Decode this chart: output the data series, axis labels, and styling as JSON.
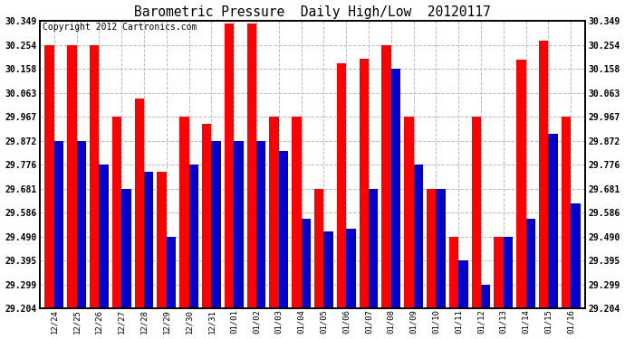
{
  "title": "Barometric Pressure  Daily High/Low  20120117",
  "copyright": "Copyright 2012 Cartronics.com",
  "categories": [
    "12/24",
    "12/25",
    "12/26",
    "12/27",
    "12/28",
    "12/29",
    "12/30",
    "12/31",
    "01/01",
    "01/02",
    "01/03",
    "01/04",
    "01/05",
    "01/06",
    "01/07",
    "01/08",
    "01/09",
    "01/10",
    "01/11",
    "01/12",
    "01/13",
    "01/14",
    "01/15",
    "01/16"
  ],
  "high_values": [
    30.254,
    30.254,
    30.254,
    29.967,
    30.04,
    29.75,
    29.967,
    29.94,
    30.34,
    30.34,
    29.967,
    29.967,
    29.681,
    30.181,
    30.2,
    30.254,
    29.967,
    29.681,
    29.49,
    29.967,
    29.49,
    30.195,
    30.27,
    29.967
  ],
  "low_values": [
    29.872,
    29.872,
    29.776,
    29.681,
    29.75,
    29.49,
    29.776,
    29.872,
    29.872,
    29.872,
    29.83,
    29.56,
    29.51,
    29.52,
    29.681,
    30.158,
    29.776,
    29.681,
    29.395,
    29.299,
    29.49,
    29.56,
    29.9,
    29.621
  ],
  "high_color": "#ff0000",
  "low_color": "#0000cc",
  "ylim_min": 29.204,
  "ylim_max": 30.349,
  "yticks": [
    29.204,
    29.299,
    29.395,
    29.49,
    29.586,
    29.681,
    29.776,
    29.872,
    29.967,
    30.063,
    30.158,
    30.254,
    30.349
  ],
  "bg_color": "#ffffff",
  "plot_bg_color": "#ffffff",
  "grid_color": "#bbbbbb",
  "title_fontsize": 10.5,
  "copyright_fontsize": 7
}
